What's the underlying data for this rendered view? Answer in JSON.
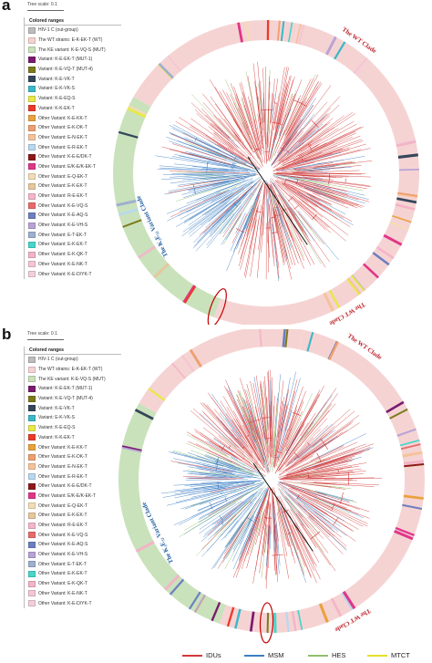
{
  "panel_a": {
    "letter": "a",
    "tree_scale": "Tree scale: 0.1",
    "legend_title": "Colored ranges",
    "clade_labels": {
      "wt_top": "The WT Clade",
      "wt_bottom": "The WT Clade",
      "variant": "The K₃E₃₂ Variant Clade"
    }
  },
  "panel_b": {
    "letter": "b",
    "tree_scale": "Tree scale: 0.1",
    "legend_title": "Colored ranges",
    "clade_labels": {
      "wt_top": "The WT Clade",
      "wt_bottom": "The WT Clade",
      "variant": "The K₃E₃₂ Variant Clade"
    }
  },
  "legend_a": [
    {
      "label": "HIV-1 C (out-group)",
      "color": "#bdbdbd"
    },
    {
      "label": "The WT strains: E-K-EK-T (WT)",
      "color": "#f6d3d3"
    },
    {
      "label": "The KE variant: K-E-VQ-S (MUT)",
      "color": "#c9e2bb"
    },
    {
      "label": "Variant: K-E-EK-T (MUT-1)",
      "color": "#7a1b6f"
    },
    {
      "label": "Variant: K-E-VQ-T (MUT-4)",
      "color": "#7d7a1b"
    },
    {
      "label": "Variant: K-E-VK-T",
      "color": "#35475b"
    },
    {
      "label": "Variant: E-K-VK-S",
      "color": "#3ab8c8"
    },
    {
      "label": "Variant: K-E-EQ-S",
      "color": "#e8e84a"
    },
    {
      "label": "Variant: K-K-EK-T",
      "color": "#ea3b2a"
    },
    {
      "label": "Other Variant: K-E-KK-T",
      "color": "#e9a23b"
    },
    {
      "label": "Other Variant: E-K-DK-T",
      "color": "#ef9f6f"
    },
    {
      "label": "Other Variant: E-N-EK-T",
      "color": "#f5c39a"
    },
    {
      "label": "Other Variant: E-R-EK-T",
      "color": "#b9d8ef"
    },
    {
      "label": "Other Variant: K-E-E/DK-T",
      "color": "#8b1a1a"
    },
    {
      "label": "Other Variant: E/K-E/K-EK-T",
      "color": "#e0368a"
    },
    {
      "label": "Other Variant: E-Q-EK-T",
      "color": "#f3dcb4"
    },
    {
      "label": "Other Variant: E-K-EK-T",
      "color": "#e7c79d"
    },
    {
      "label": "Other Variant: R-E-EK-T",
      "color": "#f4b6c8"
    },
    {
      "label": "Other Variant: K-E-VQ-S",
      "color": "#e86a6a"
    },
    {
      "label": "Other Variant: K-E-AQ-S",
      "color": "#6c7fbf"
    },
    {
      "label": "Other Variant: K-E-VH-S",
      "color": "#b7a3d6"
    },
    {
      "label": "Other Variant: E-T-EK-T",
      "color": "#9fb0cf"
    },
    {
      "label": "Other Variant: E-K-EK-T",
      "color": "#46d6c9"
    },
    {
      "label": "Other Variant: E-K-QK-T",
      "color": "#f3b4c6"
    },
    {
      "label": "Other Variant: K-E-NK-T",
      "color": "#f5c7d4"
    },
    {
      "label": "Other Variant: K-E-D/YK-T",
      "color": "#f2d0da"
    }
  ],
  "legend_b": [
    {
      "label": "HIV-1 C (out-group)",
      "color": "#bdbdbd"
    },
    {
      "label": "The WT strains: E-K-EK-T (WT)",
      "color": "#f6d3d3"
    },
    {
      "label": "The KE variant: K-E-VQ-S (MUT)",
      "color": "#c9e2bb"
    },
    {
      "label": "Variant: K-E-EK-T (MUT-1)",
      "color": "#7a1b6f"
    },
    {
      "label": "Variant: K-E-VQ-T (MUT-4)",
      "color": "#7d7a1b"
    },
    {
      "label": "Variant: K-E-VK-T",
      "color": "#35475b"
    },
    {
      "label": "Variant: E-K-VK-S",
      "color": "#3ab8c8"
    },
    {
      "label": "Variant: K-E-EQ-S",
      "color": "#e8e84a"
    },
    {
      "label": "Variant: K-K-EK-T",
      "color": "#ea3b2a"
    },
    {
      "label": "Other Variant: K-E-KK-T",
      "color": "#e9a23b"
    },
    {
      "label": "Other Variant: E-K-DK-T",
      "color": "#ef9f6f"
    },
    {
      "label": "Other Variant: E-N-EK-T",
      "color": "#f5c39a"
    },
    {
      "label": "Other Variant: E-R-EK-T",
      "color": "#b9d8ef"
    },
    {
      "label": "Other Variant: K-E-E/DK-T",
      "color": "#8b1a1a"
    },
    {
      "label": "Other Variant: E/K-E/K-EK-T",
      "color": "#e0368a"
    },
    {
      "label": "Other Variant: E-Q-EK-T",
      "color": "#f3dcb4"
    },
    {
      "label": "Other Variant: E-K-EK-T",
      "color": "#e7c79d"
    },
    {
      "label": "Other Variant: R-E-EK-T",
      "color": "#f4b6c8"
    },
    {
      "label": "Other Variant: K-E-VQ-S",
      "color": "#e86a6a"
    },
    {
      "label": "Other Variant: K-E-AQ-S",
      "color": "#6c7fbf"
    },
    {
      "label": "Other Variant: K-E-VH-S",
      "color": "#b7a3d6"
    },
    {
      "label": "Other Variant: E-T-EK-T",
      "color": "#9fb0cf"
    },
    {
      "label": "Other Variant: E-K-EK-T",
      "color": "#46d6c9"
    },
    {
      "label": "Other Variant: E-K-QK-T",
      "color": "#f3b4c6"
    },
    {
      "label": "Other Variant: K-E-NK-T",
      "color": "#f5c7d4"
    },
    {
      "label": "Other Variant: K-E-D/YK-T",
      "color": "#f2d0da"
    }
  ],
  "footer_legend": [
    {
      "label": "IDUs",
      "color": "#d23a3a"
    },
    {
      "label": "MSM",
      "color": "#3d7fc6"
    },
    {
      "label": "HES",
      "color": "#8fc06a"
    },
    {
      "label": "MTCT",
      "color": "#e6e02c"
    }
  ],
  "colors": {
    "wt_ring": "#f6d3d3",
    "variant_ring": "#c9e2bb",
    "wt_text": "#c0262e",
    "variant_text": "#1f5f9e",
    "highlight": "#c40000"
  }
}
